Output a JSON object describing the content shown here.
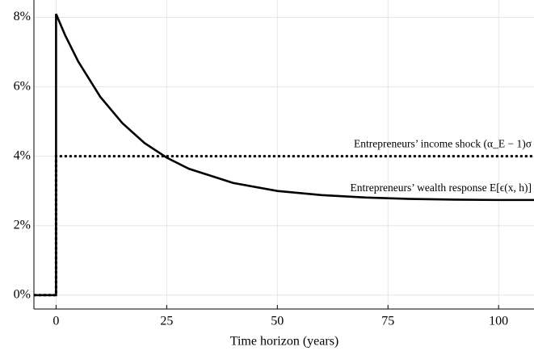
{
  "chart_data": {
    "type": "line",
    "xlabel": "Time horizon (years)",
    "xlim": [
      -5,
      108
    ],
    "ylim": [
      -0.4,
      8.5
    ],
    "xticks": [
      0,
      25,
      50,
      75,
      100
    ],
    "yticks": [
      {
        "value": 0,
        "label": "0%"
      },
      {
        "value": 2,
        "label": "2%"
      },
      {
        "value": 4,
        "label": "4%"
      },
      {
        "value": 6,
        "label": "6%"
      },
      {
        "value": 8,
        "label": "8%"
      }
    ],
    "grid": true,
    "series": [
      {
        "name": "Entrepreneurs’ income shock (α_E − 1)σ",
        "color": "#000000",
        "dash": "dotted",
        "x": [
          -5,
          0,
          0,
          108
        ],
        "values": [
          0,
          0,
          4,
          4
        ]
      },
      {
        "name": "Entrepreneurs’ wealth response E[ϵ(x, h)]",
        "color": "#000000",
        "dash": "solid",
        "x": [
          -5,
          0,
          0,
          2,
          5,
          10,
          15,
          20,
          25,
          30,
          40,
          50,
          60,
          70,
          80,
          90,
          100,
          108
        ],
        "values": [
          0,
          0,
          8.1,
          7.5,
          6.73,
          5.71,
          4.95,
          4.38,
          3.96,
          3.64,
          3.23,
          3.0,
          2.88,
          2.81,
          2.77,
          2.75,
          2.74,
          2.74
        ]
      }
    ]
  }
}
